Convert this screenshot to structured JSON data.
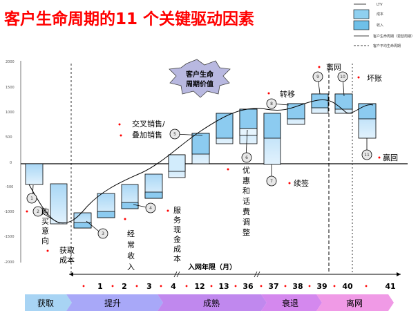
{
  "title": "客户生命周期的11 个关键驱动因素",
  "legend": [
    {
      "label": "LTV"
    },
    {
      "label": "成本",
      "color": "#8fd0f0"
    },
    {
      "label": "收入",
      "color": "#6fc0e8"
    },
    {
      "label": "客户生命周期（更替周期）"
    },
    {
      "label": "客户平均生命周期"
    }
  ],
  "y_ticks": [
    "2000",
    "1500",
    "1000",
    "500",
    "0",
    "-500",
    "-1000",
    "-1500",
    "-2000"
  ],
  "burst_label": "客户生命周期价值",
  "drivers": [
    {
      "num": "1",
      "label": "购买意向"
    },
    {
      "num": "2",
      "label": "获取成本"
    },
    {
      "num": "3",
      "label": "经常收入"
    },
    {
      "num": "4",
      "label": "服务现金成本"
    },
    {
      "num": "5",
      "label": "交叉销售/叠加销售"
    },
    {
      "num": "6",
      "label": "优惠和话费调整"
    },
    {
      "num": "7",
      "label": "续签"
    },
    {
      "num": "8",
      "label": "转移"
    },
    {
      "num": "9",
      "label": "离网"
    },
    {
      "num": "10",
      "label": "坏账"
    },
    {
      "num": "11",
      "label": "赢回"
    }
  ],
  "axis_title": "入网年限（月）",
  "months": [
    "1",
    "2",
    "3",
    "4",
    "12",
    "13",
    "36",
    "37",
    "38",
    "39",
    "40",
    "41"
  ],
  "phases": [
    {
      "label": "获取",
      "color": "#a8d4f4"
    },
    {
      "label": "提升",
      "color": "#a8a8f8"
    },
    {
      "label": "成熟",
      "color": "#c088ee"
    },
    {
      "label": "衰退",
      "color": "#d488ee"
    },
    {
      "label": "离网",
      "color": "#f09ae6"
    }
  ],
  "colors": {
    "title": "#ff0000",
    "box": "#c8e6fb",
    "box_top": "#7fc3ec",
    "bullet": "#ff0000"
  }
}
